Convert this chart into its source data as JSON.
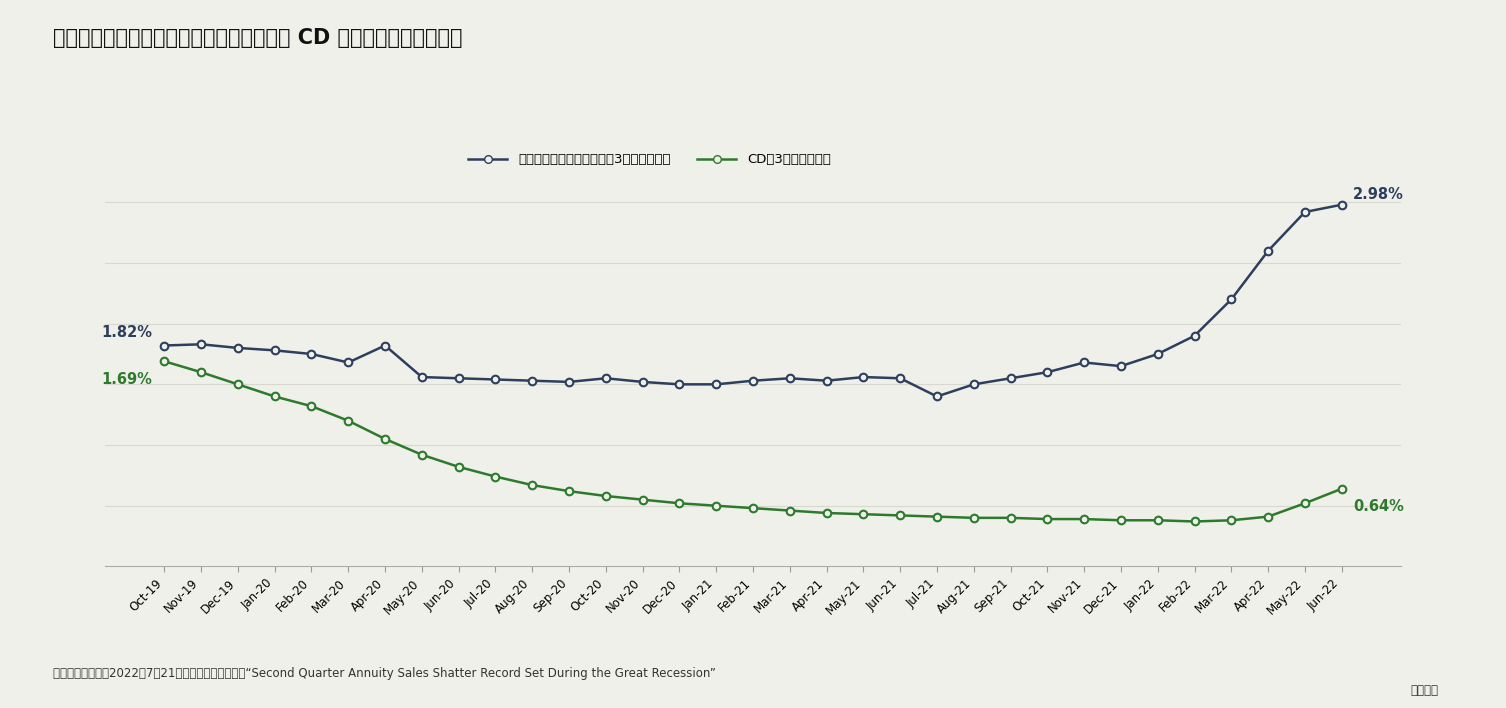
{
  "title": "グラフ３　確定利付き据置定額年金と銀行 CD のレート差が広がった",
  "legend_annuity": "確定利付き据置定額年金の3年平均レート",
  "legend_cd": "CDの3年平均レート",
  "source_text": "（資料）　リムラ2022年7月21日付ニュースリリース“Second Quarter Annuity Sales Shatter Record Set During the Great Recession”",
  "source_text2": "から転載",
  "x_labels": [
    "Oct-19",
    "Nov-19",
    "Dec-19",
    "Jan-20",
    "Feb-20",
    "Mar-20",
    "Apr-20",
    "May-20",
    "Jun-20",
    "Jul-20",
    "Aug-20",
    "Sep-20",
    "Oct-20",
    "Nov-20",
    "Dec-20",
    "Jan-21",
    "Feb-21",
    "Mar-21",
    "Apr-21",
    "May-21",
    "Jun-21",
    "Jul-21",
    "Aug-21",
    "Sep-21",
    "Oct-21",
    "Nov-21",
    "Dec-21",
    "Jan-22",
    "Feb-22",
    "Mar-22",
    "Apr-22",
    "May-22",
    "Jun-22"
  ],
  "annuity_values": [
    1.82,
    1.83,
    1.8,
    1.78,
    1.75,
    1.68,
    1.82,
    1.56,
    1.55,
    1.54,
    1.53,
    1.52,
    1.55,
    1.52,
    1.5,
    1.5,
    1.53,
    1.55,
    1.53,
    1.56,
    1.55,
    1.4,
    1.5,
    1.55,
    1.6,
    1.68,
    1.65,
    1.75,
    1.9,
    2.2,
    2.6,
    2.92,
    2.98
  ],
  "cd_values": [
    1.69,
    1.6,
    1.5,
    1.4,
    1.32,
    1.2,
    1.05,
    0.92,
    0.82,
    0.74,
    0.67,
    0.62,
    0.58,
    0.55,
    0.52,
    0.5,
    0.48,
    0.46,
    0.44,
    0.43,
    0.42,
    0.41,
    0.4,
    0.4,
    0.39,
    0.39,
    0.38,
    0.38,
    0.37,
    0.38,
    0.41,
    0.52,
    0.64
  ],
  "annuity_color": "#2d3f5c",
  "cd_color": "#2d7a2d",
  "marker_face": "#f0f0eb",
  "ylim": [
    0.0,
    3.5
  ],
  "label_annuity_start": "1.82%",
  "label_annuity_end": "2.98%",
  "label_cd_start": "1.69%",
  "label_cd_end": "0.64%",
  "bg_color": "#f0f0eb",
  "plot_bg": "#f0f0eb",
  "grid_color": "#d8d8d0",
  "grid_y_values": [
    0.5,
    1.0,
    1.5,
    2.0,
    2.5,
    3.0
  ]
}
